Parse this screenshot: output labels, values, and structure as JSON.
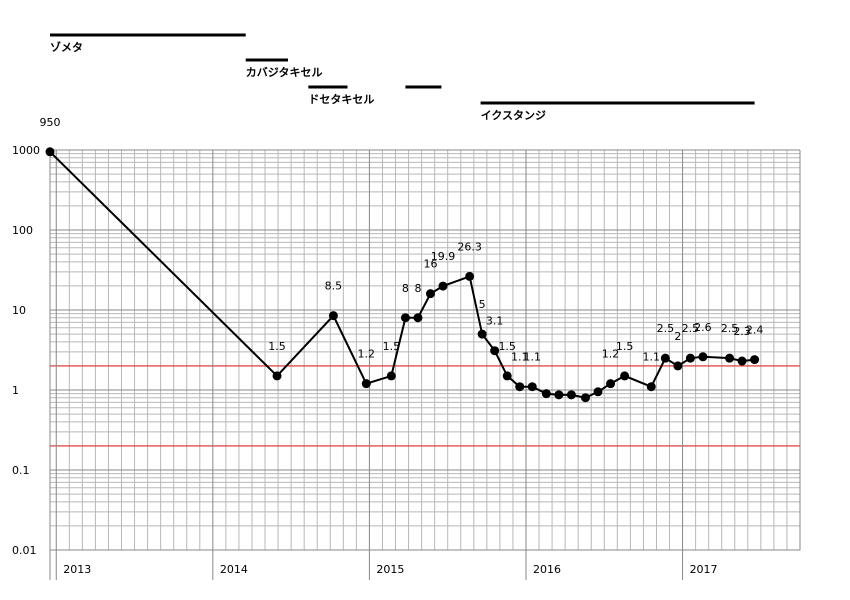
{
  "chart_data": {
    "type": "line",
    "title": "",
    "xlabel": "",
    "ylabel": "",
    "y_scale": "log",
    "ylim": [
      0.01,
      1000
    ],
    "y_ticks": [
      "1000",
      "100",
      "10",
      "1",
      "0.1",
      "0.01"
    ],
    "x_ticks": [
      {
        "label": "2013",
        "x": 2013.0
      },
      {
        "label": "2014",
        "x": 2014.0
      },
      {
        "label": "2015",
        "x": 2015.0
      },
      {
        "label": "2016",
        "x": 2016.0
      },
      {
        "label": "2017",
        "x": 2017.0
      }
    ],
    "xlim": [
      2012.96,
      2017.75
    ],
    "grid": true,
    "reference_lines": [
      {
        "value": 2,
        "color": "#e03030"
      },
      {
        "value": 0.2,
        "color": "#e03030"
      }
    ],
    "line_color": "#000000",
    "series": [
      {
        "points": [
          {
            "x": 2012.96,
            "y": 950,
            "label": "950"
          },
          {
            "x": 2014.41,
            "y": 1.5,
            "label": "1.5"
          },
          {
            "x": 2014.77,
            "y": 8.5,
            "label": "8.5"
          },
          {
            "x": 2014.98,
            "y": 1.2,
            "label": "1.2"
          },
          {
            "x": 2015.14,
            "y": 1.5,
            "label": "1.5"
          },
          {
            "x": 2015.23,
            "y": 8,
            "label": "8"
          },
          {
            "x": 2015.31,
            "y": 8,
            "label": "8"
          },
          {
            "x": 2015.39,
            "y": 16,
            "label": "16"
          },
          {
            "x": 2015.47,
            "y": 19.9,
            "label": "19.9"
          },
          {
            "x": 2015.64,
            "y": 26.3,
            "label": "26.3"
          },
          {
            "x": 2015.72,
            "y": 5,
            "label": "5"
          },
          {
            "x": 2015.8,
            "y": 3.1,
            "label": "3.1"
          },
          {
            "x": 2015.88,
            "y": 1.5,
            "label": "1.5"
          },
          {
            "x": 2015.96,
            "y": 1.1,
            "label": "1.1"
          },
          {
            "x": 2016.04,
            "y": 1.1,
            "label": "1.1"
          },
          {
            "x": 2016.13,
            "y": 0.9,
            "label": ""
          },
          {
            "x": 2016.21,
            "y": 0.87,
            "label": ""
          },
          {
            "x": 2016.29,
            "y": 0.87,
            "label": ""
          },
          {
            "x": 2016.38,
            "y": 0.8,
            "label": ""
          },
          {
            "x": 2016.46,
            "y": 0.95,
            "label": ""
          },
          {
            "x": 2016.54,
            "y": 1.2,
            "label": "1.2"
          },
          {
            "x": 2016.63,
            "y": 1.5,
            "label": "1.5"
          },
          {
            "x": 2016.8,
            "y": 1.1,
            "label": "1.1"
          },
          {
            "x": 2016.89,
            "y": 2.5,
            "label": "2.5"
          },
          {
            "x": 2016.97,
            "y": 2,
            "label": "2"
          },
          {
            "x": 2017.05,
            "y": 2.5,
            "label": "2.5"
          },
          {
            "x": 2017.13,
            "y": 2.6,
            "label": "2.6"
          },
          {
            "x": 2017.3,
            "y": 2.5,
            "label": "2.5"
          },
          {
            "x": 2017.38,
            "y": 2.3,
            "label": "2.3"
          },
          {
            "x": 2017.46,
            "y": 2.4,
            "label": "2.4"
          }
        ]
      }
    ],
    "treatments": [
      {
        "name": "ゾメタ",
        "start": 2012.96,
        "end": 2014.21
      },
      {
        "name": "カバジタキセル",
        "start": 2014.21,
        "end": 2014.48
      },
      {
        "name": "ドセタキセル",
        "start": 2014.61,
        "end": 2014.86
      },
      {
        "name": "",
        "start": 2015.23,
        "end": 2015.46
      },
      {
        "name": "イクスタンジ",
        "start": 2015.71,
        "end": 2017.46
      }
    ]
  }
}
